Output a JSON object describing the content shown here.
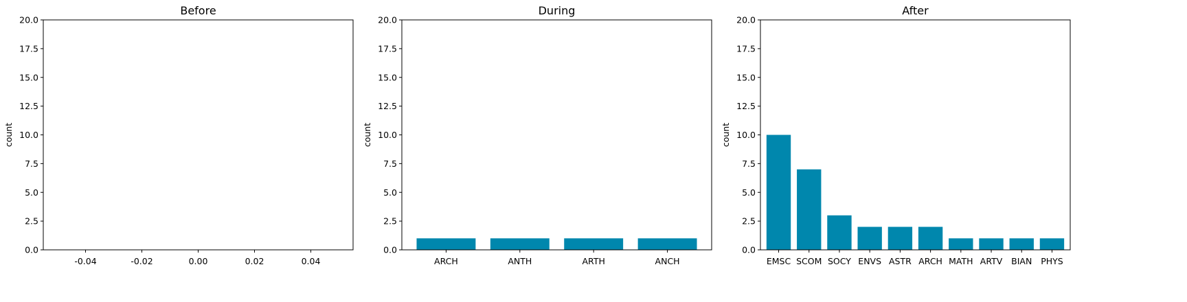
{
  "colors": {
    "bar": "#0087ad",
    "axis": "#000000",
    "background": "#ffffff"
  },
  "chart_data": [
    {
      "type": "bar",
      "title": "Before",
      "xlabel": "",
      "ylabel": "count",
      "categories": [],
      "values": [],
      "xlim": [
        -0.055,
        0.055
      ],
      "xticks": [
        "-0.04",
        "-0.02",
        "0.00",
        "0.02",
        "0.04"
      ],
      "xtick_values": [
        -0.04,
        -0.02,
        0,
        0.02,
        0.04
      ],
      "ylim": [
        0,
        20
      ],
      "yticks": [
        "0.0",
        "2.5",
        "5.0",
        "7.5",
        "10.0",
        "12.5",
        "15.0",
        "17.5",
        "20.0"
      ],
      "grid": false
    },
    {
      "type": "bar",
      "title": "During",
      "xlabel": "",
      "ylabel": "count",
      "categories": [
        "ARCH",
        "ANTH",
        "ARTH",
        "ANCH"
      ],
      "values": [
        1,
        1,
        1,
        1
      ],
      "ylim": [
        0,
        20
      ],
      "yticks": [
        "0.0",
        "2.5",
        "5.0",
        "7.5",
        "10.0",
        "12.5",
        "15.0",
        "17.5",
        "20.0"
      ],
      "grid": false
    },
    {
      "type": "bar",
      "title": "After",
      "xlabel": "",
      "ylabel": "count",
      "categories": [
        "EMSC",
        "SCOM",
        "SOCY",
        "ENVS",
        "ASTR",
        "ARCH",
        "MATH",
        "ARTV",
        "BIAN",
        "PHYS"
      ],
      "values": [
        10,
        7,
        3,
        2,
        2,
        2,
        1,
        1,
        1,
        1
      ],
      "ylim": [
        0,
        20
      ],
      "yticks": [
        "0.0",
        "2.5",
        "5.0",
        "7.5",
        "10.0",
        "12.5",
        "15.0",
        "17.5",
        "20.0"
      ],
      "grid": false
    }
  ]
}
